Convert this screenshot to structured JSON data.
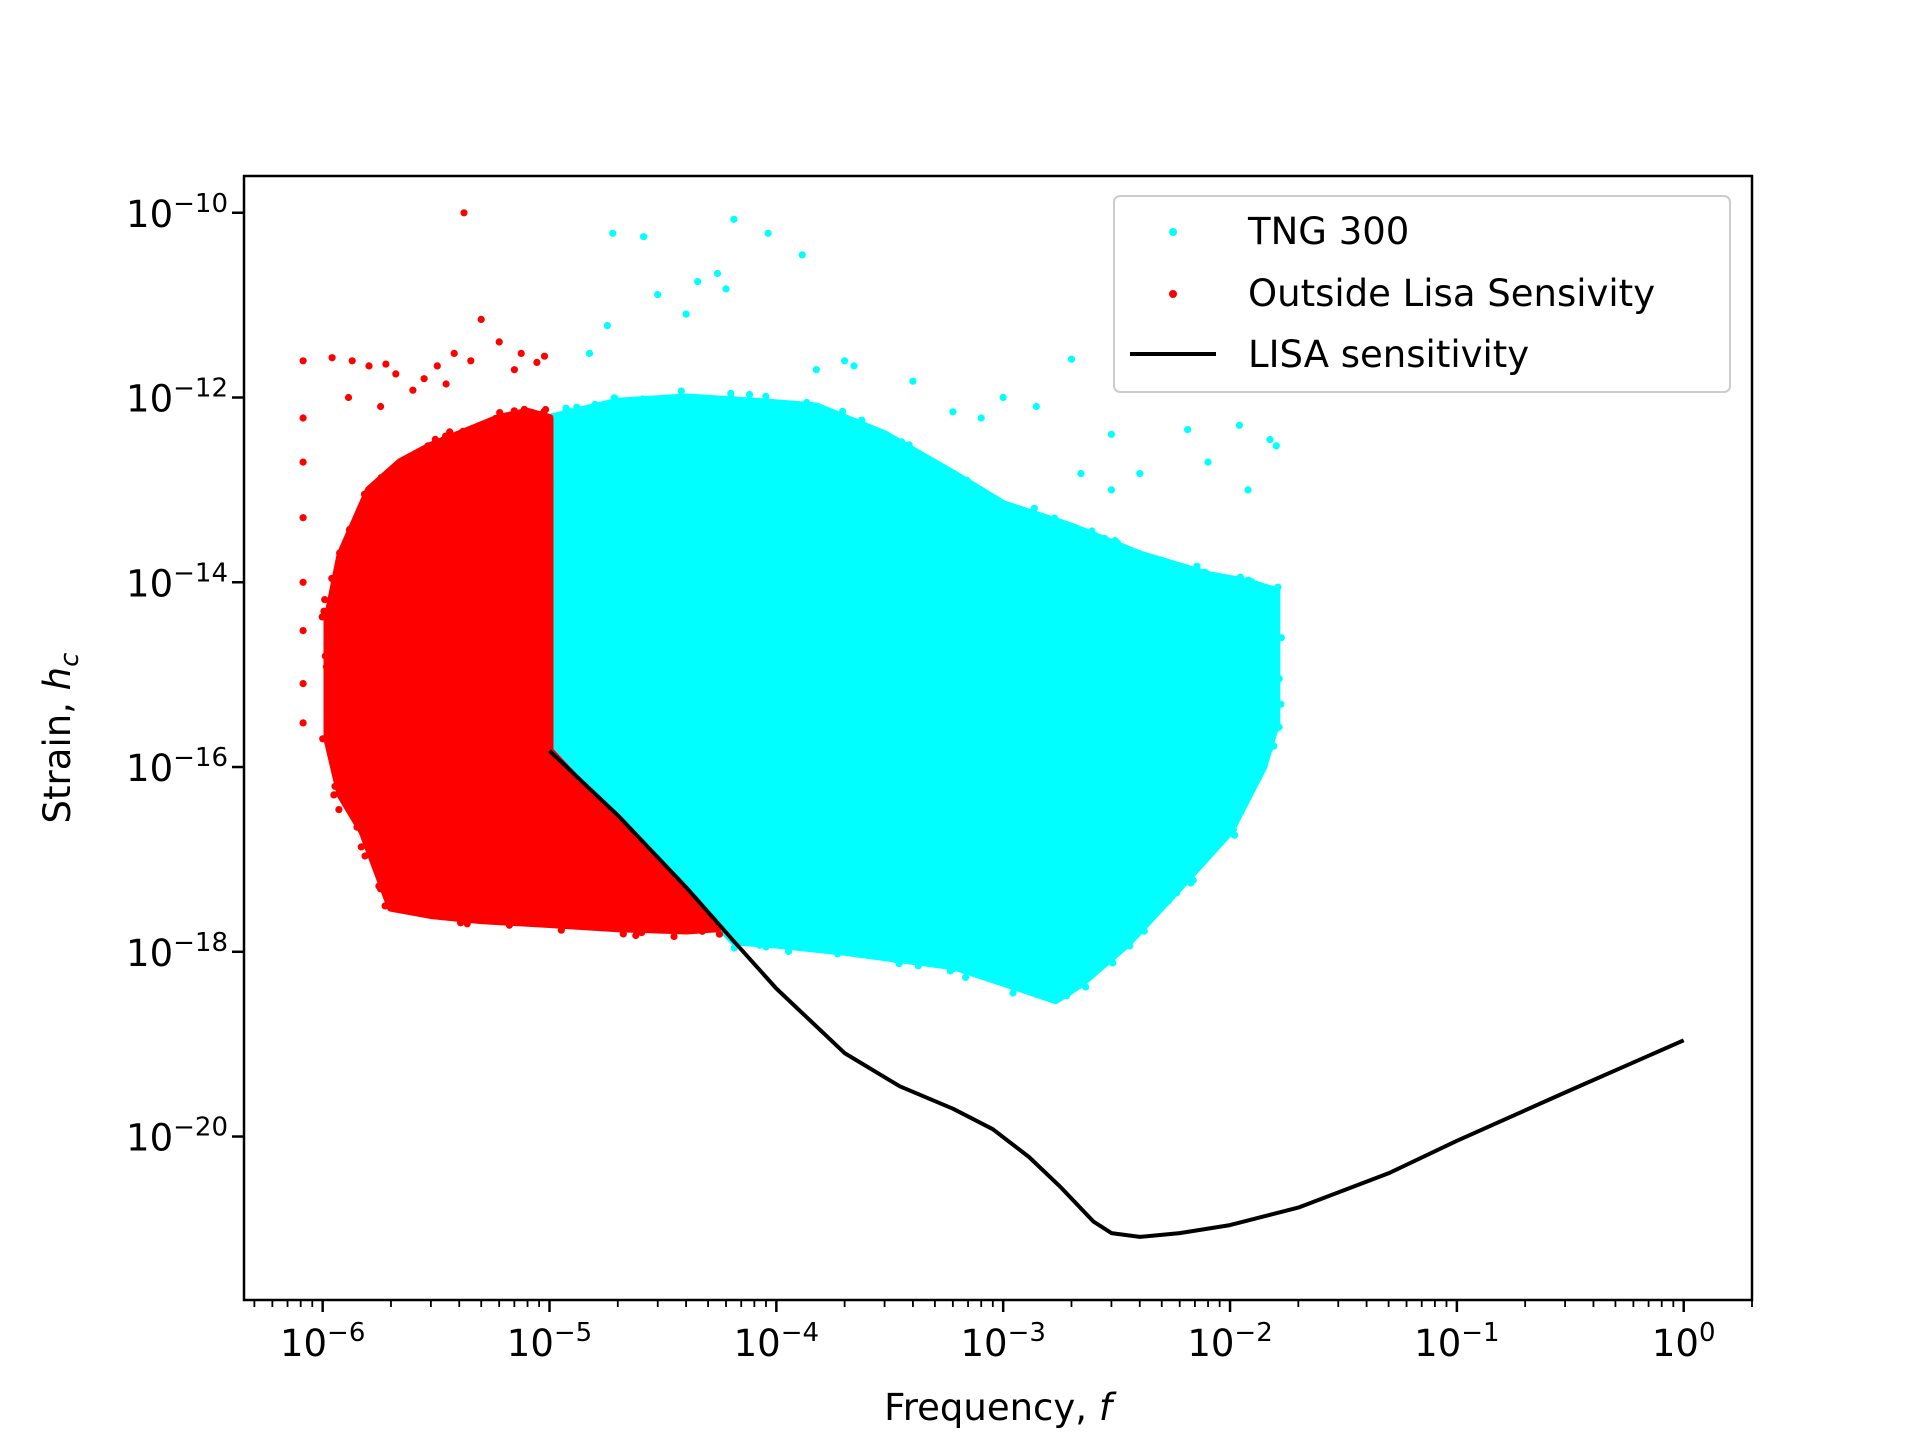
{
  "chart_data": {
    "type": "scatter",
    "title": "",
    "xlabel_main": "Frequency, ",
    "xlabel_var": "f",
    "ylabel_main": "Strain, ",
    "ylabel_var": "h",
    "ylabel_sub": "c",
    "x_scale": "log",
    "y_scale": "log",
    "xlim": [
      4.5e-07,
      2.0
    ],
    "ylim": [
      1.7e-22,
      2.5e-10
    ],
    "grid": false,
    "legend_position": "top-right",
    "x_ticks": [
      {
        "value": 1e-06,
        "base": "10",
        "exp": "−6"
      },
      {
        "value": 1e-05,
        "base": "10",
        "exp": "−5"
      },
      {
        "value": 0.0001,
        "base": "10",
        "exp": "−4"
      },
      {
        "value": 0.001,
        "base": "10",
        "exp": "−3"
      },
      {
        "value": 0.01,
        "base": "10",
        "exp": "−2"
      },
      {
        "value": 0.1,
        "base": "10",
        "exp": "−1"
      },
      {
        "value": 1.0,
        "base": "10",
        "exp": "0"
      }
    ],
    "y_ticks": [
      {
        "value": 1e-20,
        "base": "10",
        "exp": "−20"
      },
      {
        "value": 1e-18,
        "base": "10",
        "exp": "−18"
      },
      {
        "value": 1e-16,
        "base": "10",
        "exp": "−16"
      },
      {
        "value": 1e-14,
        "base": "10",
        "exp": "−14"
      },
      {
        "value": 1e-12,
        "base": "10",
        "exp": "−12"
      },
      {
        "value": 1e-10,
        "base": "10",
        "exp": "−10"
      }
    ],
    "series": [
      {
        "name": "TNG 300",
        "kind": "scatter",
        "color": "#00ffff",
        "outline": [
          [
            1e-05,
            1.5e-16
          ],
          [
            1e-05,
            6e-13
          ],
          [
            1.3e-05,
            7e-13
          ],
          [
            2e-05,
            9e-13
          ],
          [
            4e-05,
            1e-12
          ],
          [
            8e-05,
            9e-13
          ],
          [
            0.00015,
            8e-13
          ],
          [
            0.0003,
            4e-13
          ],
          [
            0.0006,
            1.5e-13
          ],
          [
            0.001,
            7e-14
          ],
          [
            0.002,
            4e-14
          ],
          [
            0.004,
            2e-14
          ],
          [
            0.008,
            1.2e-14
          ],
          [
            0.012,
            1e-14
          ],
          [
            0.016,
            8e-15
          ],
          [
            0.016,
            3e-16
          ],
          [
            0.014,
            1e-16
          ],
          [
            0.01,
            2e-17
          ],
          [
            0.006,
            5e-18
          ],
          [
            0.0035,
            1.2e-18
          ],
          [
            0.0022,
            4.5e-19
          ],
          [
            0.0017,
            3e-19
          ],
          [
            0.0012,
            4e-19
          ],
          [
            0.0006,
            7e-19
          ],
          [
            0.0002,
            1e-18
          ],
          [
            0.0001,
            1.2e-18
          ],
          [
            6.5e-05,
            1.3e-18
          ]
        ],
        "scattered_points": [
          [
            1.9e-05,
            6e-11
          ],
          [
            2.6e-05,
            5.5e-11
          ],
          [
            6.5e-05,
            8.5e-11
          ],
          [
            9.2e-05,
            6e-11
          ],
          [
            0.00013,
            3.5e-11
          ],
          [
            5.5e-05,
            2.2e-11
          ],
          [
            4.5e-05,
            1.8e-11
          ],
          [
            6e-05,
            1.5e-11
          ],
          [
            4e-05,
            8e-12
          ],
          [
            3e-05,
            1.3e-11
          ],
          [
            1.8e-05,
            6e-12
          ],
          [
            1.5e-05,
            3e-12
          ],
          [
            0.00022,
            2.2e-12
          ],
          [
            0.002,
            2.6e-12
          ],
          [
            0.0014,
            8e-13
          ],
          [
            0.0006,
            7e-13
          ],
          [
            0.001,
            1e-12
          ],
          [
            0.003,
            4e-13
          ],
          [
            0.0065,
            4.5e-13
          ],
          [
            0.011,
            5e-13
          ],
          [
            0.015,
            3.5e-13
          ],
          [
            0.0022,
            1.5e-13
          ],
          [
            0.004,
            1.5e-13
          ],
          [
            0.008,
            2e-13
          ],
          [
            0.012,
            1e-13
          ],
          [
            0.016,
            3e-13
          ],
          [
            0.003,
            1e-13
          ],
          [
            0.0002,
            2.5e-12
          ],
          [
            0.00015,
            2e-12
          ],
          [
            0.0004,
            1.5e-12
          ],
          [
            0.0008,
            6e-13
          ]
        ]
      },
      {
        "name": "Outside Lisa Sensivity",
        "kind": "scatter",
        "color": "#ff0000",
        "outline": [
          [
            1e-05,
            1.5e-16
          ],
          [
            1e-05,
            6e-13
          ],
          [
            8e-06,
            7e-13
          ],
          [
            6e-06,
            6e-13
          ],
          [
            4e-06,
            4e-13
          ],
          [
            3e-06,
            3e-13
          ],
          [
            2.2e-06,
            2e-13
          ],
          [
            1.6e-06,
            1e-13
          ],
          [
            1.2e-06,
            2e-14
          ],
          [
            1.05e-06,
            4e-15
          ],
          [
            1.05e-06,
            2e-16
          ],
          [
            1.2e-06,
            5e-17
          ],
          [
            1.5e-06,
            2e-17
          ],
          [
            1.8e-06,
            6e-18
          ],
          [
            2e-06,
            3e-18
          ],
          [
            3e-06,
            2.5e-18
          ],
          [
            5e-06,
            2.2e-18
          ],
          [
            1e-05,
            2e-18
          ],
          [
            2e-05,
            1.8e-18
          ],
          [
            4e-05,
            1.7e-18
          ],
          [
            5.5e-05,
            1.8e-18
          ]
        ],
        "scattered_points": [
          [
            4.2e-06,
            1e-10
          ],
          [
            8.2e-07,
            2.5e-12
          ],
          [
            8.2e-07,
            6e-13
          ],
          [
            8.2e-07,
            2e-13
          ],
          [
            8.2e-07,
            5e-14
          ],
          [
            8.2e-07,
            1e-14
          ],
          [
            8.2e-07,
            3e-15
          ],
          [
            8.2e-07,
            8e-16
          ],
          [
            8.2e-07,
            3e-16
          ],
          [
            1.1e-06,
            2.7e-12
          ],
          [
            1.35e-06,
            2.5e-12
          ],
          [
            1.6e-06,
            2.2e-12
          ],
          [
            1.9e-06,
            2.3e-12
          ],
          [
            2.1e-06,
            1.8e-12
          ],
          [
            3.2e-06,
            2.2e-12
          ],
          [
            3.8e-06,
            3e-12
          ],
          [
            5e-06,
            7e-12
          ],
          [
            4.5e-06,
            2.5e-12
          ],
          [
            6e-06,
            4e-12
          ],
          [
            7.5e-06,
            3e-12
          ],
          [
            8.8e-06,
            2.4e-12
          ],
          [
            9.5e-06,
            2.8e-12
          ],
          [
            2.5e-06,
            1.2e-12
          ],
          [
            2.8e-06,
            1.6e-12
          ],
          [
            3.5e-06,
            1.4e-12
          ],
          [
            7e-06,
            2e-12
          ],
          [
            1.3e-06,
            1e-12
          ],
          [
            1.8e-06,
            8e-13
          ]
        ]
      },
      {
        "name": "LISA sensitivity",
        "kind": "line",
        "color": "#000000",
        "points": [
          [
            1e-05,
            1.5e-16
          ],
          [
            2e-05,
            3e-17
          ],
          [
            4e-05,
            5e-18
          ],
          [
            6.5e-05,
            1.3e-18
          ],
          [
            0.0001,
            4e-19
          ],
          [
            0.0002,
            8e-20
          ],
          [
            0.00035,
            3.5e-20
          ],
          [
            0.0006,
            2e-20
          ],
          [
            0.0009,
            1.2e-20
          ],
          [
            0.0013,
            6e-21
          ],
          [
            0.0018,
            2.8e-21
          ],
          [
            0.0025,
            1.2e-21
          ],
          [
            0.003,
            9e-22
          ],
          [
            0.004,
            8.2e-22
          ],
          [
            0.006,
            9e-22
          ],
          [
            0.01,
            1.1e-21
          ],
          [
            0.02,
            1.7e-21
          ],
          [
            0.05,
            4e-21
          ],
          [
            0.1,
            9e-21
          ],
          [
            0.3,
            3e-20
          ],
          [
            1,
            1.1e-19
          ]
        ]
      }
    ]
  }
}
